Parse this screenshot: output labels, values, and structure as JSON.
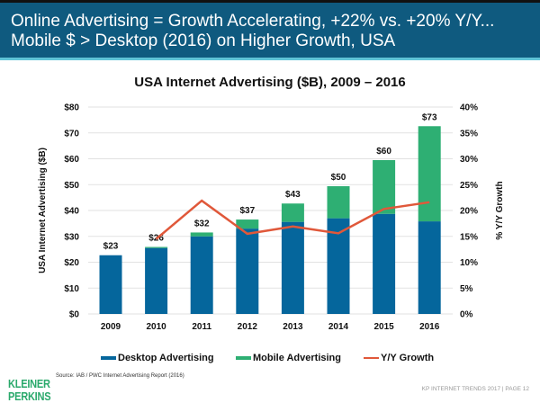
{
  "header": {
    "line1": "Online Advertising = Growth Accelerating, +22% vs. +20% Y/Y...",
    "line2": "Mobile $ > Desktop (2016) on Higher Growth, USA",
    "color": "#0f5a7f"
  },
  "chart_data": {
    "type": "bar",
    "stacked": true,
    "title": "USA Internet Advertising ($B), 2009 – 2016",
    "ylabel": "USA Internet Advertising ($B)",
    "y2label": "% Y/Y Growth",
    "categories": [
      "2009",
      "2010",
      "2011",
      "2012",
      "2013",
      "2014",
      "2015",
      "2016"
    ],
    "ylim": [
      0,
      80
    ],
    "y2lim": [
      0,
      40
    ],
    "yticks": [
      "$0",
      "$10",
      "$20",
      "$30",
      "$40",
      "$50",
      "$60",
      "$70",
      "$80"
    ],
    "y2ticks": [
      "0%",
      "5%",
      "10%",
      "15%",
      "20%",
      "25%",
      "30%",
      "35%",
      "40%"
    ],
    "grid": true,
    "legend_position": "bottom",
    "series": [
      {
        "name": "Desktop Advertising",
        "type": "bar",
        "color": "#05669c",
        "values": [
          22.7,
          25.5,
          30.0,
          33.0,
          35.6,
          37.0,
          38.7,
          35.8
        ]
      },
      {
        "name": "Mobile Advertising",
        "type": "bar",
        "color": "#2eaf73",
        "values": [
          0,
          0.4,
          1.5,
          3.5,
          7.1,
          12.4,
          20.8,
          36.8
        ]
      },
      {
        "name": "Y/Y Growth",
        "type": "line",
        "axis": "right",
        "color": "#e0583a",
        "values": [
          null,
          14.5,
          21.9,
          15.5,
          16.9,
          15.6,
          20.3,
          21.6
        ]
      }
    ],
    "total_labels": [
      "$23",
      "$26",
      "$32",
      "$37",
      "$43",
      "$50",
      "$60",
      "$73"
    ]
  },
  "footer": {
    "logo_line1": "KLEINER",
    "logo_line2": "PERKINS",
    "source": "Source: IAB / PWC Internet Advertising Report (2016)",
    "page": "KP INTERNET TRENDS 2017  |  PAGE 12"
  }
}
